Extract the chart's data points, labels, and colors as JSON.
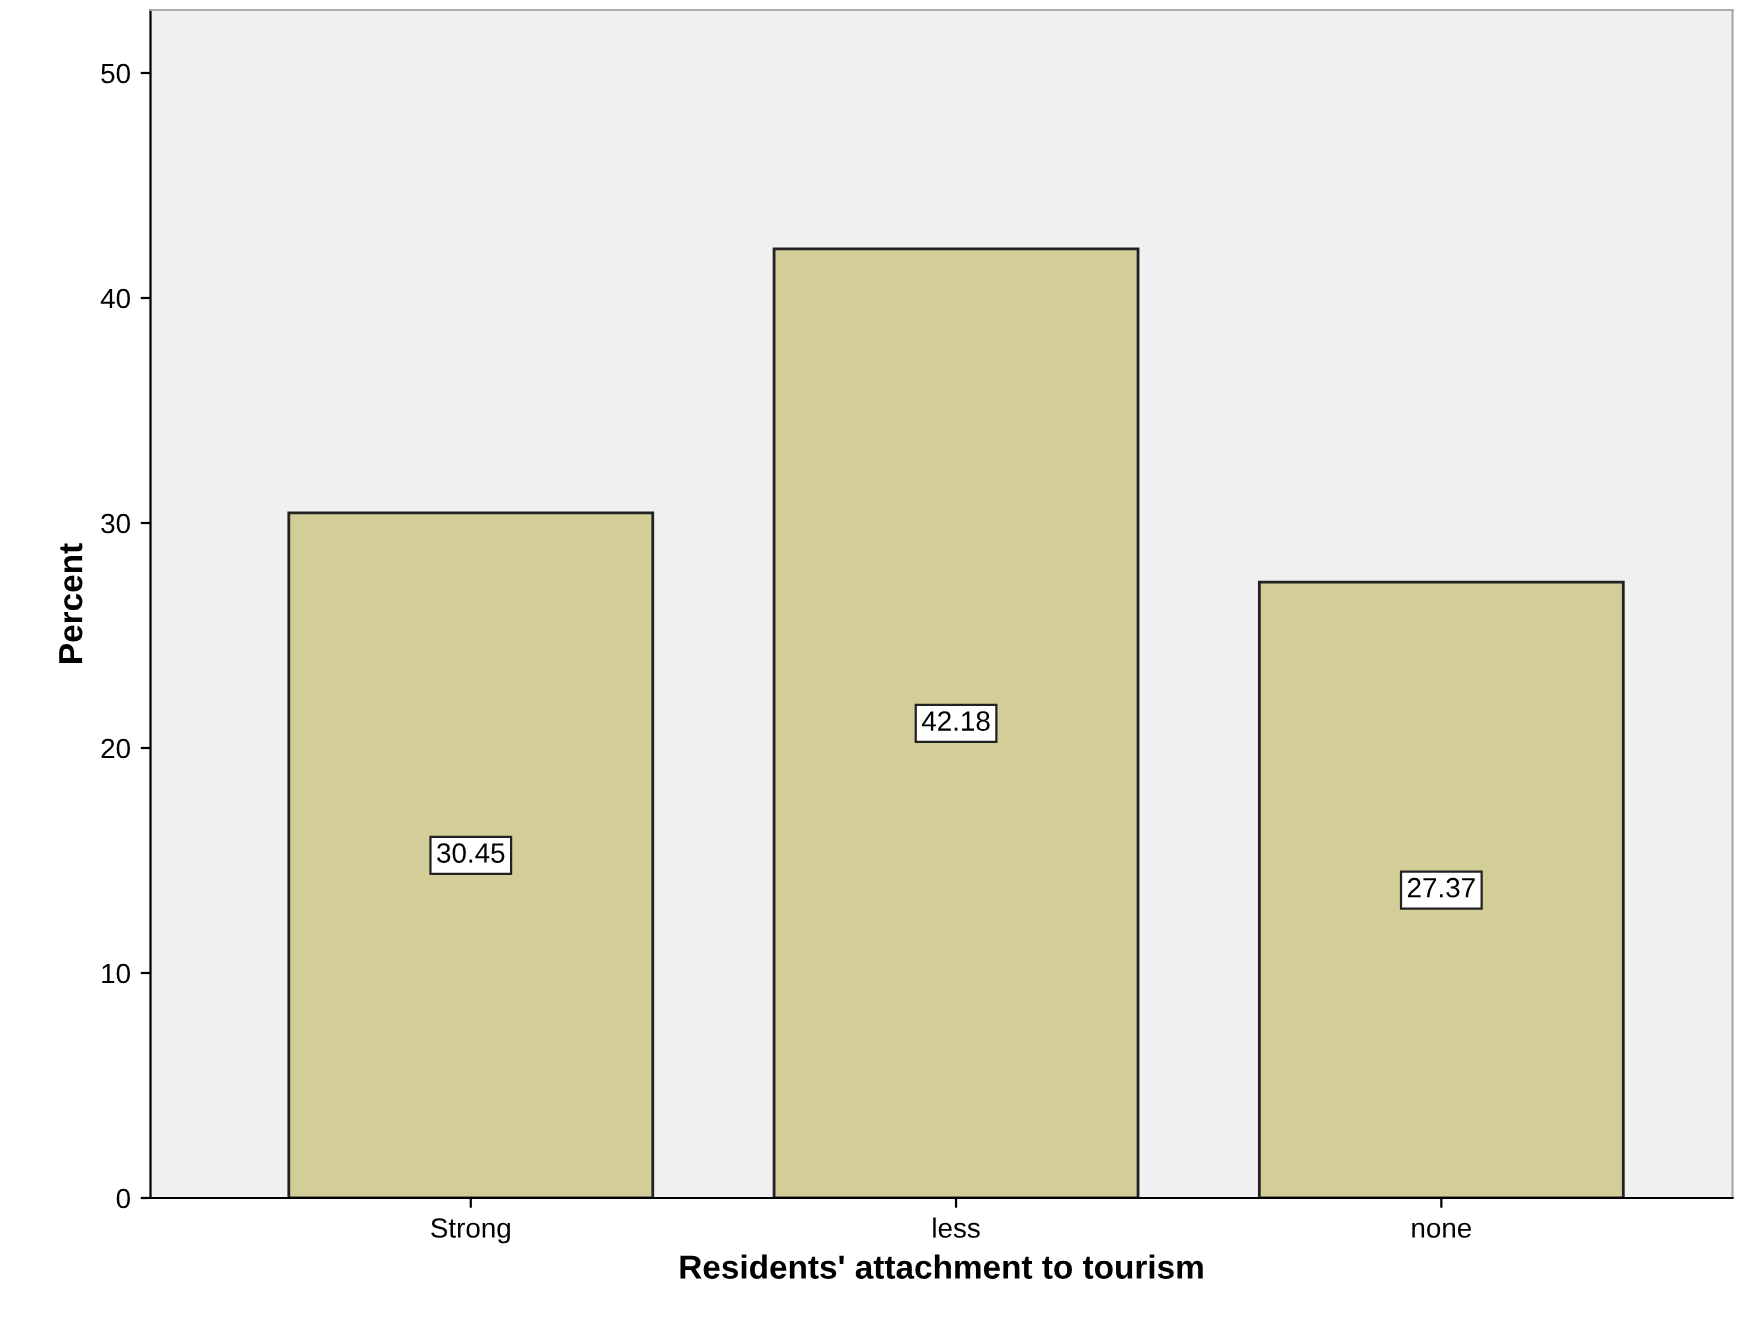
{
  "chart_data": {
    "type": "bar",
    "xlabel": "Residents' attachment to tourism",
    "ylabel": "Percent",
    "categories": [
      "Strong",
      "less",
      "none"
    ],
    "values": [
      30.45,
      42.18,
      27.37
    ],
    "color": "#d3ce98",
    "ylim": [
      0,
      52.8
    ],
    "yticks": [
      0,
      10,
      20,
      30,
      40,
      50
    ],
    "grid": false,
    "data_labels": true
  }
}
